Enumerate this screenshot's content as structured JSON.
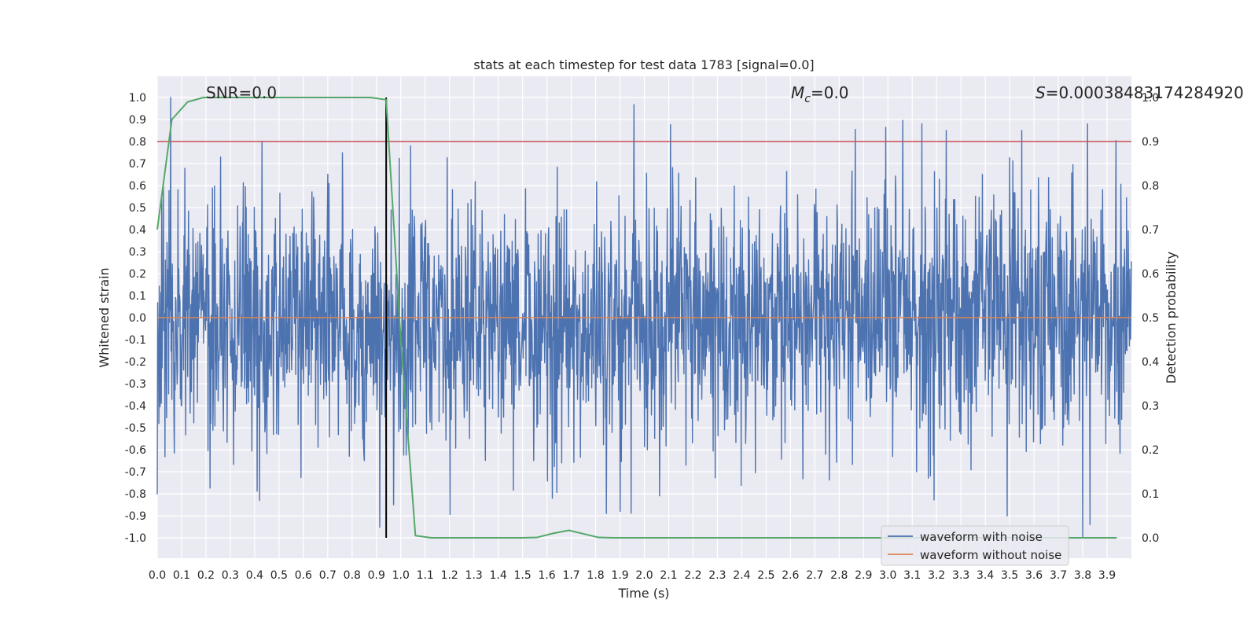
{
  "chart_data": {
    "type": "line",
    "title": "stats at each timestep for test data 1783 [signal=0.0]",
    "xlabel": "Time (s)",
    "ylabel": "Whitened strain",
    "y2label": "Detection probability",
    "xlim": [
      0.0,
      4.0
    ],
    "ylim": [
      -1.0,
      1.0
    ],
    "y2lim": [
      0.0,
      1.0
    ],
    "grid": true,
    "legend_position": "bottom-right",
    "x_ticks": [
      "0.0",
      "0.1",
      "0.2",
      "0.3",
      "0.4",
      "0.5",
      "0.6",
      "0.7",
      "0.8",
      "0.9",
      "1.0",
      "1.1",
      "1.2",
      "1.3",
      "1.4",
      "1.5",
      "1.6",
      "1.7",
      "1.8",
      "1.9",
      "2.0",
      "2.1",
      "2.2",
      "2.3",
      "2.4",
      "2.5",
      "2.6",
      "2.7",
      "2.8",
      "2.9",
      "3.0",
      "3.1",
      "3.2",
      "3.3",
      "3.4",
      "3.5",
      "3.6",
      "3.7",
      "3.8",
      "3.9"
    ],
    "y_ticks": [
      "1.0",
      "0.9",
      "0.8",
      "0.7",
      "0.6",
      "0.5",
      "0.4",
      "0.3",
      "0.2",
      "0.1",
      "0.0",
      "-0.1",
      "-0.2",
      "-0.3",
      "-0.4",
      "-0.5",
      "-0.6",
      "-0.7",
      "-0.8",
      "-0.9",
      "-1.0"
    ],
    "y2_ticks": [
      "1.0",
      "0.9",
      "0.8",
      "0.7",
      "0.6",
      "0.5",
      "0.4",
      "0.3",
      "0.2",
      "0.1",
      "0.0"
    ],
    "annotations": {
      "snr": "SNR=0.0",
      "mc_symbol": "M",
      "mc_sub": "c",
      "mc_value": "=0.0",
      "s_symbol": "S",
      "s_value": "=0.00038483174284920"
    },
    "threshold_y2": 0.9,
    "detection_time": 0.94,
    "series": [
      {
        "name": "waveform with noise",
        "color": "#4c72b0",
        "axis": "left",
        "description_values": "dense noise, typically within ±0.6, extremes near ±1.0",
        "peaks": [
          {
            "x": 0.055,
            "y": 1.0
          },
          {
            "x": 0.26,
            "y": 0.73
          },
          {
            "x": 0.43,
            "y": 0.8
          },
          {
            "x": 1.04,
            "y": 0.78
          },
          {
            "x": 3.14,
            "y": 0.88
          },
          {
            "x": 3.24,
            "y": 0.85
          },
          {
            "x": 3.55,
            "y": 0.85
          },
          {
            "x": 3.82,
            "y": 0.88
          },
          {
            "x": 0.42,
            "y": -0.83
          },
          {
            "x": 0.97,
            "y": -0.85
          },
          {
            "x": 1.9,
            "y": -0.88
          },
          {
            "x": 3.49,
            "y": -0.9
          },
          {
            "x": 3.8,
            "y": -1.0
          },
          {
            "x": 3.83,
            "y": -0.94
          }
        ]
      },
      {
        "name": "waveform without noise",
        "color": "#dd8452",
        "axis": "left",
        "x": [
          0.0,
          4.0
        ],
        "y": [
          0.0,
          0.0
        ]
      },
      {
        "name": "Detection probability",
        "color": "#55a868",
        "axis": "right",
        "x": [
          0.0,
          0.06,
          0.125,
          0.19,
          0.25,
          0.31,
          0.375,
          0.44,
          0.5,
          0.56,
          0.625,
          0.69,
          0.75,
          0.81,
          0.875,
          0.94,
          1.0,
          1.06,
          1.125,
          1.19,
          1.25,
          1.31,
          1.375,
          1.44,
          1.5,
          1.56,
          1.625,
          1.69,
          1.75,
          1.81,
          1.875,
          1.94,
          2.0,
          2.5,
          3.0,
          3.5,
          3.94
        ],
        "y": [
          0.7,
          0.95,
          0.99,
          1.0,
          1.0,
          1.0,
          1.0,
          1.0,
          1.0,
          1.0,
          1.0,
          1.0,
          1.0,
          1.0,
          1.0,
          0.995,
          0.45,
          0.005,
          0.0,
          0.0,
          0.0,
          0.0,
          0.0,
          0.0,
          0.0,
          0.001,
          0.01,
          0.017,
          0.009,
          0.001,
          0.0,
          0.0,
          0.0,
          0.0,
          0.0,
          0.0,
          0.0
        ]
      }
    ]
  },
  "colors": {
    "axes_bg": "#eaeaf2",
    "grid": "#ffffff",
    "threshold": "#c44e52",
    "detection_marker": "#000000"
  }
}
